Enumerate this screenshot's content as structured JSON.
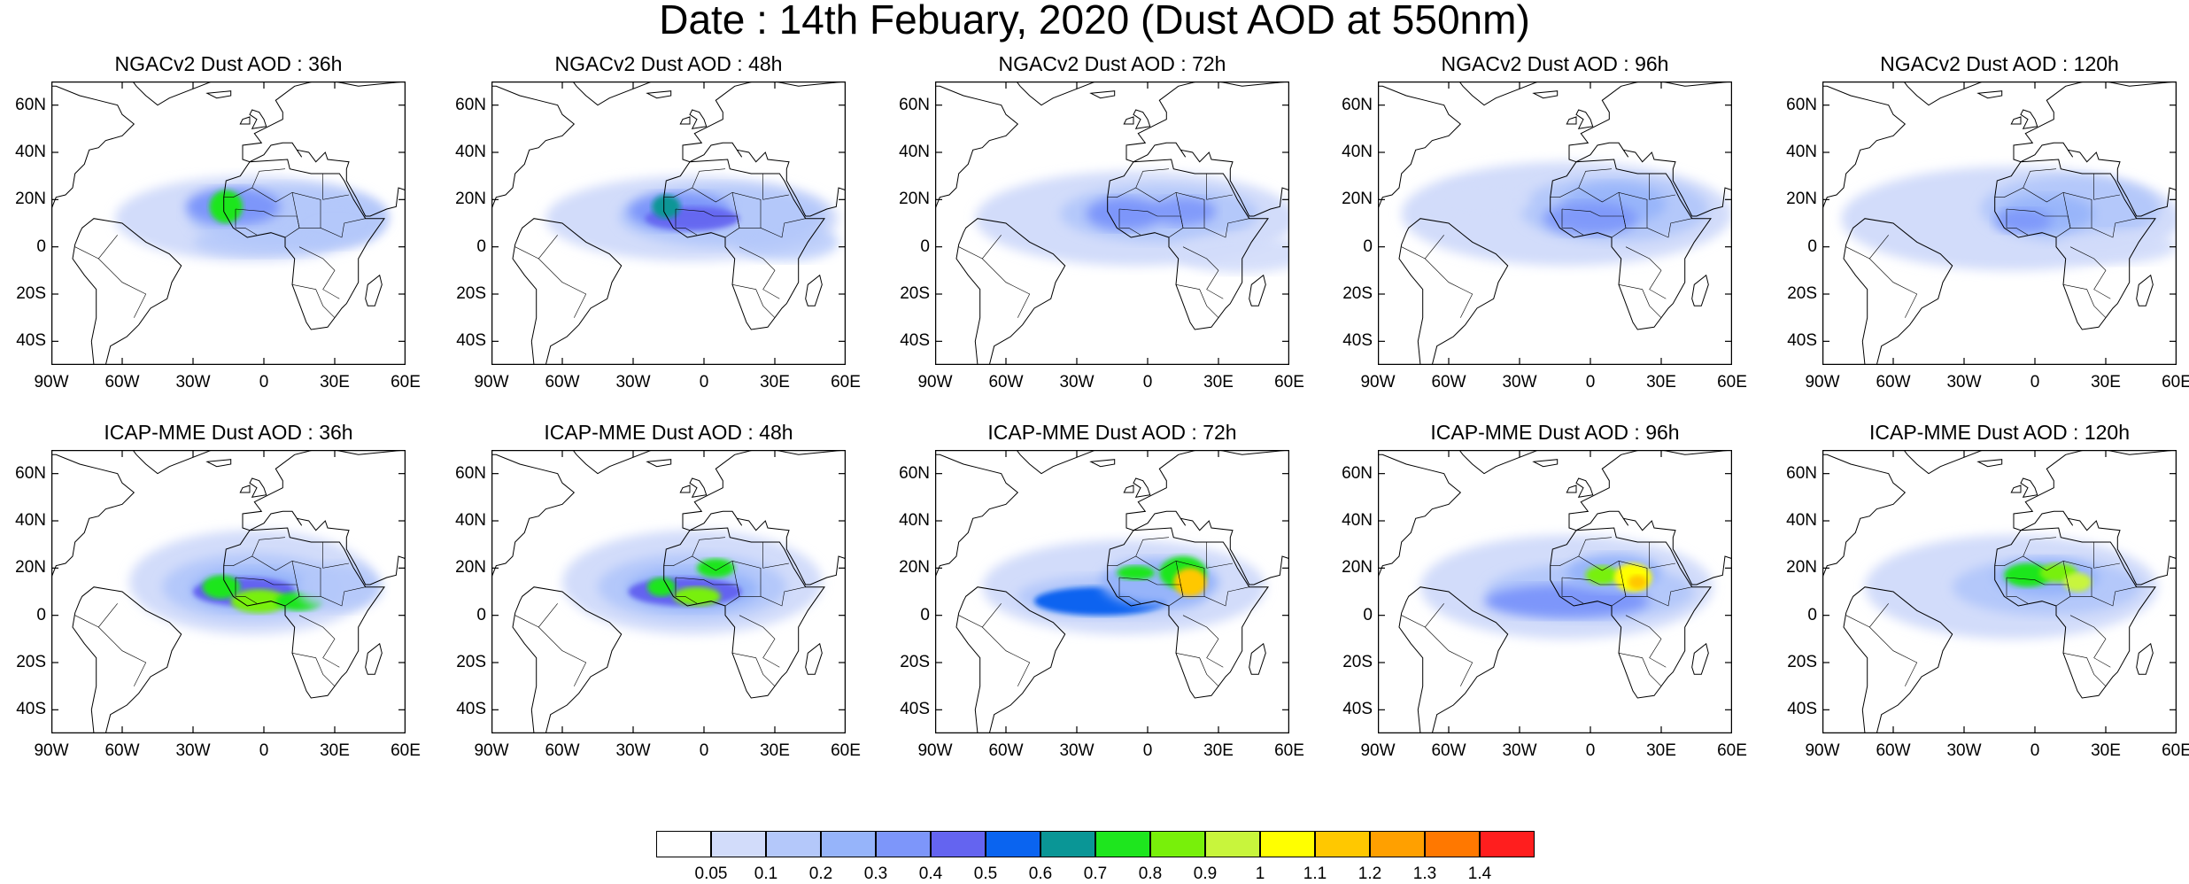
{
  "title": "Date : 14th Febuary, 2020 (Dust AOD at 550nm)",
  "panels": [
    {
      "title": "NGACv2 Dust AOD : 36h",
      "model": "ngac",
      "hour": 36
    },
    {
      "title": "NGACv2 Dust AOD : 48h",
      "model": "ngac",
      "hour": 48
    },
    {
      "title": "NGACv2 Dust AOD : 72h",
      "model": "ngac",
      "hour": 72
    },
    {
      "title": "NGACv2 Dust AOD : 96h",
      "model": "ngac",
      "hour": 96
    },
    {
      "title": "NGACv2 Dust AOD : 120h",
      "model": "ngac",
      "hour": 120
    },
    {
      "title": "ICAP-MME Dust AOD : 36h",
      "model": "icap",
      "hour": 36
    },
    {
      "title": "ICAP-MME Dust AOD : 48h",
      "model": "icap",
      "hour": 48
    },
    {
      "title": "ICAP-MME Dust AOD : 72h",
      "model": "icap",
      "hour": 72
    },
    {
      "title": "ICAP-MME Dust AOD : 96h",
      "model": "icap",
      "hour": 96
    },
    {
      "title": "ICAP-MME Dust AOD : 120h",
      "model": "icap",
      "hour": 120
    }
  ],
  "map_extent": {
    "lon": [
      -90,
      60
    ],
    "lat": [
      -50,
      70
    ]
  },
  "lat_ticks": [
    "60N",
    "40N",
    "20N",
    "0",
    "20S",
    "40S"
  ],
  "lon_ticks": [
    "90W",
    "60W",
    "30W",
    "0",
    "30E",
    "60E"
  ],
  "colorbar": {
    "labels": [
      "0.05",
      "0.1",
      "0.2",
      "0.3",
      "0.4",
      "0.5",
      "0.6",
      "0.7",
      "0.8",
      "0.9",
      "1",
      "1.1",
      "1.2",
      "1.3",
      "1.4"
    ],
    "colors": [
      "#ffffff",
      "#d2dcfa",
      "#b4c8fa",
      "#96b4fa",
      "#7d96fa",
      "#6464f0",
      "#0a64f0",
      "#0a9696",
      "#1ee61e",
      "#78f00a",
      "#c8f53c",
      "#ffff00",
      "#ffc800",
      "#ffa000",
      "#ff7800",
      "#ff1e1e"
    ]
  }
}
